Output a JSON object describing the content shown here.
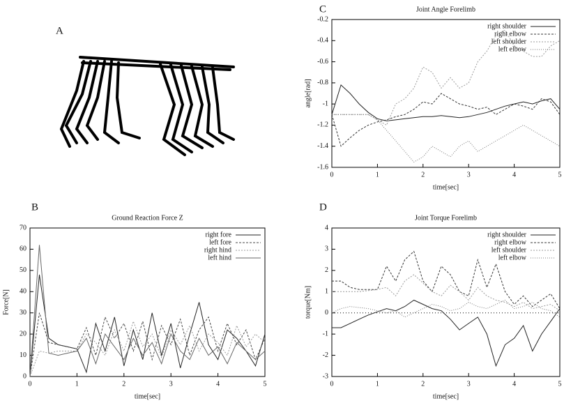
{
  "panel_labels": [
    "A",
    "B",
    "C",
    "D"
  ],
  "chart_data": [
    {
      "type": "line",
      "title": "Joint Angle Forelimb",
      "xlabel": "time[sec]",
      "ylabel": "angle[rad]",
      "x": [
        0,
        0.2,
        0.4,
        0.6,
        0.8,
        1,
        1.2,
        1.4,
        1.6,
        1.8,
        2,
        2.2,
        2.4,
        2.6,
        2.8,
        3,
        3.2,
        3.4,
        3.6,
        3.8,
        4,
        4.2,
        4.4,
        4.6,
        4.8,
        5
      ],
      "xlim": [
        0,
        5
      ],
      "xticks": [
        0,
        1,
        2,
        3,
        4,
        5
      ],
      "ylim": [
        -1.6,
        -0.2
      ],
      "yticks": [
        -1.6,
        -1.4,
        -1.2,
        -1,
        -0.8,
        -0.6,
        -0.4,
        -0.2
      ],
      "legend": "top-right",
      "zeroaxis": false,
      "series": [
        {
          "name": "right shoulder",
          "color": "#222",
          "dash": "none",
          "values": [
            -1.1,
            -0.82,
            -0.9,
            -1.0,
            -1.08,
            -1.14,
            -1.16,
            -1.15,
            -1.14,
            -1.13,
            -1.12,
            -1.12,
            -1.11,
            -1.12,
            -1.13,
            -1.12,
            -1.1,
            -1.08,
            -1.05,
            -1.02,
            -1.0,
            -0.98,
            -1.0,
            -0.97,
            -0.95,
            -1.05
          ]
        },
        {
          "name": "right elbow",
          "color": "#333",
          "dash": "3,2",
          "values": [
            -1.1,
            -1.4,
            -1.32,
            -1.25,
            -1.2,
            -1.17,
            -1.15,
            -1.12,
            -1.1,
            -1.05,
            -0.98,
            -1.0,
            -0.9,
            -0.95,
            -1.0,
            -1.02,
            -1.05,
            -1.03,
            -1.1,
            -1.05,
            -1.0,
            -1.02,
            -1.05,
            -0.95,
            -0.98,
            -1.1
          ]
        },
        {
          "name": "left shoulder",
          "color": "#999",
          "dash": "2,2",
          "values": [
            -1.1,
            -1.1,
            -1.1,
            -1.1,
            -1.1,
            -1.15,
            -1.2,
            -1.0,
            -0.95,
            -0.85,
            -0.65,
            -0.7,
            -0.85,
            -0.75,
            -0.85,
            -0.8,
            -0.6,
            -0.5,
            -0.35,
            -0.3,
            -0.45,
            -0.5,
            -0.55,
            -0.55,
            -0.45,
            -0.4
          ]
        },
        {
          "name": "left elbow",
          "color": "#777",
          "dash": "1,2",
          "values": [
            -1.1,
            -1.1,
            -1.1,
            -1.1,
            -1.1,
            -1.15,
            -1.25,
            -1.35,
            -1.45,
            -1.55,
            -1.5,
            -1.4,
            -1.45,
            -1.5,
            -1.4,
            -1.35,
            -1.45,
            -1.4,
            -1.35,
            -1.3,
            -1.25,
            -1.2,
            -1.25,
            -1.3,
            -1.35,
            -1.4
          ]
        }
      ]
    },
    {
      "type": "line",
      "title": "Ground Reaction Force Z",
      "xlabel": "time[sec]",
      "ylabel": "Force[N]",
      "x": [
        0,
        0.2,
        0.4,
        0.6,
        0.8,
        1,
        1.2,
        1.4,
        1.6,
        1.8,
        2,
        2.2,
        2.4,
        2.6,
        2.8,
        3,
        3.2,
        3.4,
        3.6,
        3.8,
        4,
        4.2,
        4.4,
        4.6,
        4.8,
        5
      ],
      "xlim": [
        0,
        5
      ],
      "xticks": [
        0,
        1,
        2,
        3,
        4,
        5
      ],
      "ylim": [
        0,
        70
      ],
      "yticks": [
        0,
        10,
        20,
        30,
        40,
        50,
        60,
        70
      ],
      "legend": "top-right",
      "zeroaxis": false,
      "series": [
        {
          "name": "right fore",
          "color": "#222",
          "dash": "none",
          "values": [
            0,
            48,
            18,
            15,
            14,
            13,
            2,
            25,
            12,
            28,
            5,
            22,
            8,
            30,
            10,
            25,
            4,
            20,
            35,
            15,
            8,
            22,
            18,
            12,
            5,
            20
          ]
        },
        {
          "name": "left fore",
          "color": "#444",
          "dash": "3,2",
          "values": [
            0,
            30,
            16,
            15,
            14,
            13,
            23,
            10,
            28,
            18,
            25,
            12,
            26,
            8,
            24,
            15,
            27,
            10,
            22,
            28,
            12,
            25,
            15,
            22,
            8,
            18
          ]
        },
        {
          "name": "right hind",
          "color": "#999",
          "dash": "2,2",
          "values": [
            0,
            12,
            11,
            12,
            12,
            12,
            20,
            16,
            10,
            22,
            12,
            26,
            14,
            20,
            9,
            22,
            15,
            24,
            12,
            20,
            16,
            10,
            24,
            14,
            20,
            16
          ]
        },
        {
          "name": "left hind",
          "color": "#666",
          "dash": "none",
          "values": [
            0,
            62,
            11,
            10,
            11,
            12,
            18,
            6,
            20,
            14,
            8,
            18,
            10,
            16,
            6,
            20,
            12,
            8,
            18,
            10,
            14,
            6,
            16,
            12,
            8,
            12
          ]
        }
      ]
    },
    {
      "type": "line",
      "title": "Joint Torque Forelimb",
      "xlabel": "time[sec]",
      "ylabel": "torque[Nm]",
      "x": [
        0,
        0.2,
        0.4,
        0.6,
        0.8,
        1,
        1.2,
        1.4,
        1.6,
        1.8,
        2,
        2.2,
        2.4,
        2.6,
        2.8,
        3,
        3.2,
        3.4,
        3.6,
        3.8,
        4,
        4.2,
        4.4,
        4.6,
        4.8,
        5
      ],
      "xlim": [
        0,
        5
      ],
      "xticks": [
        0,
        1,
        2,
        3,
        4,
        5
      ],
      "ylim": [
        -3,
        4
      ],
      "yticks": [
        -3,
        -2,
        -1,
        0,
        1,
        2,
        3,
        4
      ],
      "legend": "top-right",
      "zeroaxis": true,
      "series": [
        {
          "name": "right shoulder",
          "color": "#222",
          "dash": "none",
          "values": [
            -0.7,
            -0.7,
            -0.5,
            -0.3,
            -0.1,
            0.05,
            0.2,
            0.1,
            0.3,
            0.6,
            0.4,
            0.2,
            0.1,
            -0.3,
            -0.8,
            -0.5,
            -0.2,
            -1.0,
            -2.5,
            -1.5,
            -1.2,
            -0.6,
            -1.8,
            -1.0,
            -0.4,
            0.2
          ]
        },
        {
          "name": "right elbow",
          "color": "#333",
          "dash": "3,2",
          "values": [
            1.5,
            1.5,
            1.2,
            1.1,
            1.1,
            1.1,
            2.2,
            1.5,
            2.5,
            2.9,
            1.5,
            1.0,
            2.2,
            1.8,
            1.0,
            0.8,
            2.5,
            1.2,
            2.3,
            1.0,
            0.4,
            0.8,
            0.3,
            0.6,
            0.9,
            0.2
          ]
        },
        {
          "name": "left shoulder",
          "color": "#999",
          "dash": "2,2",
          "values": [
            1.0,
            1.0,
            1.0,
            1.0,
            1.05,
            1.1,
            1.2,
            0.8,
            1.5,
            1.8,
            1.4,
            1.0,
            0.8,
            1.3,
            1.0,
            0.6,
            1.2,
            0.8,
            0.6,
            0.5,
            0.3,
            0.5,
            0.2,
            0.3,
            0.4,
            0.1
          ]
        },
        {
          "name": "left elbow",
          "color": "#777",
          "dash": "1,2",
          "values": [
            0,
            0.2,
            0.3,
            0.25,
            0.2,
            0.1,
            0,
            0.1,
            -0.2,
            0,
            0.2,
            0.4,
            0.3,
            0.1,
            0.2,
            0.5,
            0.3,
            0.2,
            0.4,
            0.6,
            0.2,
            0.3,
            0.5,
            0.2,
            0.1,
            -0.2
          ]
        }
      ]
    }
  ]
}
